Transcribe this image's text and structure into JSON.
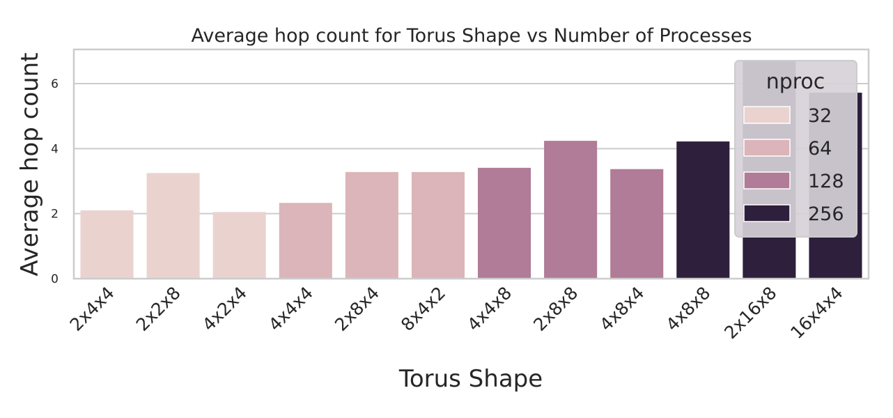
{
  "chart_data": {
    "type": "bar",
    "title": "Average hop count for Torus Shape vs Number of Processes",
    "xlabel": "Torus Shape",
    "ylabel": "Average hop count",
    "categories": [
      "2x4x4",
      "2x2x8",
      "4x2x4",
      "4x4x4",
      "2x8x4",
      "8x4x2",
      "4x4x8",
      "2x8x8",
      "4x8x4",
      "4x8x8",
      "2x16x8",
      "16x4x4"
    ],
    "values": [
      2.1,
      3.25,
      2.05,
      2.33,
      3.28,
      3.28,
      3.41,
      4.24,
      3.37,
      4.22,
      6.7,
      5.72
    ],
    "nproc": [
      32,
      32,
      32,
      64,
      64,
      64,
      128,
      128,
      128,
      256,
      256,
      256
    ],
    "ylim": [
      0,
      7.05
    ],
    "yticks": [
      0,
      2,
      4,
      6
    ],
    "grid": true,
    "legend": {
      "title": "nproc",
      "placement": "upper right",
      "entries": [
        {
          "label": "32",
          "color": "#ead3cf"
        },
        {
          "label": "64",
          "color": "#dbb5b9"
        },
        {
          "label": "128",
          "color": "#b07c97"
        },
        {
          "label": "256",
          "color": "#2e1f3c"
        }
      ]
    }
  }
}
